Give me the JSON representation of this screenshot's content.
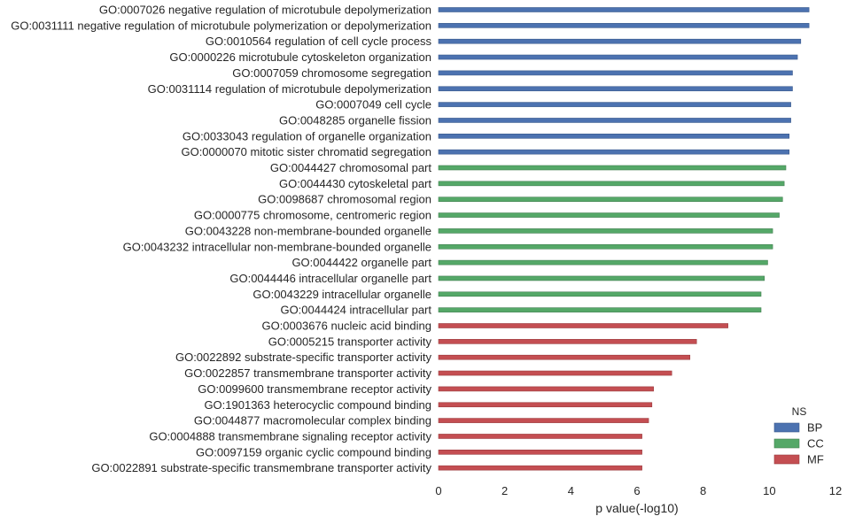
{
  "chart_data": {
    "type": "bar",
    "orientation": "horizontal",
    "xlabel": "p value(-log10)",
    "ylabel": "",
    "xlim": [
      0,
      12
    ],
    "xticks": [
      0,
      2,
      4,
      6,
      8,
      10,
      12
    ],
    "grid": false,
    "legend": {
      "title": "NS",
      "placement": "bottom-right",
      "entries": [
        {
          "name": "BP",
          "color": "#4c72b0"
        },
        {
          "name": "CC",
          "color": "#55a868"
        },
        {
          "name": "MF",
          "color": "#c44e52"
        }
      ]
    },
    "categories": [
      "GO:0007026 negative regulation of microtubule depolymerization",
      "GO:0031111 negative regulation of microtubule polymerization or depolymerization",
      "GO:0010564 regulation of cell cycle process",
      "GO:0000226 microtubule cytoskeleton organization",
      "GO:0007059 chromosome segregation",
      "GO:0031114 regulation of microtubule depolymerization",
      "GO:0007049 cell cycle",
      "GO:0048285 organelle fission",
      "GO:0033043 regulation of organelle organization",
      "GO:0000070 mitotic sister chromatid segregation",
      "GO:0044427 chromosomal part",
      "GO:0044430 cytoskeletal part",
      "GO:0098687 chromosomal region",
      "GO:0000775 chromosome, centromeric region",
      "GO:0043228 non-membrane-bounded organelle",
      "GO:0043232 intracellular non-membrane-bounded organelle",
      "GO:0044422 organelle part",
      "GO:0044446 intracellular organelle part",
      "GO:0043229 intracellular organelle",
      "GO:0044424 intracellular part",
      "GO:0003676 nucleic acid binding",
      "GO:0005215 transporter activity",
      "GO:0022892 substrate-specific transporter activity",
      "GO:0022857 transmembrane transporter activity",
      "GO:0099600 transmembrane receptor activity",
      "GO:1901363 heterocyclic compound binding",
      "GO:0044877 macromolecular complex binding",
      "GO:0004888 transmembrane signaling receptor activity",
      "GO:0097159 organic cyclic compound binding",
      "GO:0022891 substrate-specific transmembrane transporter activity"
    ],
    "values": [
      11.2,
      11.2,
      10.95,
      10.85,
      10.7,
      10.7,
      10.65,
      10.65,
      10.6,
      10.6,
      10.5,
      10.45,
      10.4,
      10.3,
      10.1,
      10.1,
      9.95,
      9.85,
      9.75,
      9.75,
      8.75,
      7.8,
      7.6,
      7.05,
      6.5,
      6.45,
      6.35,
      6.15,
      6.15,
      6.15
    ],
    "ns": [
      "BP",
      "BP",
      "BP",
      "BP",
      "BP",
      "BP",
      "BP",
      "BP",
      "BP",
      "BP",
      "CC",
      "CC",
      "CC",
      "CC",
      "CC",
      "CC",
      "CC",
      "CC",
      "CC",
      "CC",
      "MF",
      "MF",
      "MF",
      "MF",
      "MF",
      "MF",
      "MF",
      "MF",
      "MF",
      "MF"
    ]
  }
}
